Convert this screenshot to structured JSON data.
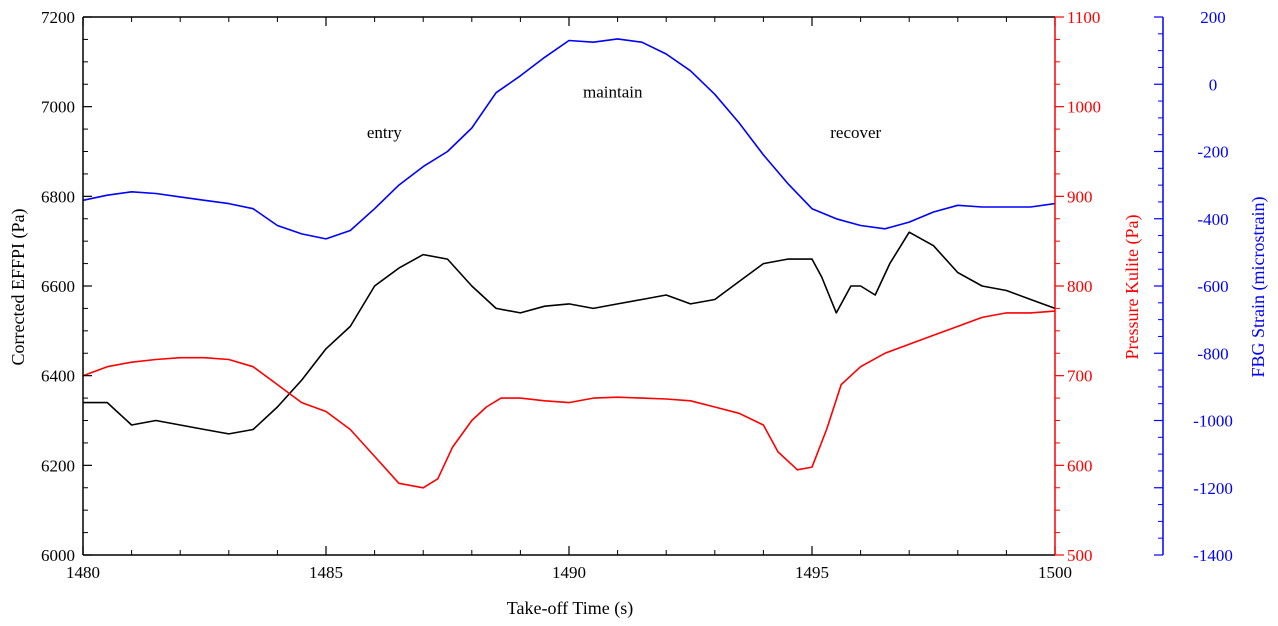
{
  "chart_data": {
    "type": "line",
    "xlabel": "Take-off Time (s)",
    "xlim": [
      1480,
      1500
    ],
    "xticks": [
      1480,
      1485,
      1490,
      1495,
      1500
    ],
    "grid": false,
    "axes": {
      "left": {
        "label": "Corrected EFFPI (Pa)",
        "color": "#000000",
        "ylim": [
          6000,
          7200
        ],
        "ticks": [
          6000,
          6200,
          6400,
          6600,
          6800,
          7000,
          7200
        ]
      },
      "right": {
        "label": "Pressure Kulite (Pa)",
        "color": "#ff0000",
        "ylim": [
          500,
          1100
        ],
        "ticks": [
          500,
          600,
          700,
          800,
          900,
          1000,
          1100
        ]
      },
      "far": {
        "label": "FBG Strain (microstrain)",
        "color": "#0000ff",
        "ylim": [
          -1400,
          200
        ],
        "ticks": [
          -1400,
          -1200,
          -1000,
          -800,
          -600,
          -400,
          -200,
          0,
          200
        ]
      }
    },
    "annotations": [
      {
        "text": "entry",
        "x": 1486.2,
        "y": 6930
      },
      {
        "text": "maintain",
        "x": 1490.9,
        "y": 7020
      },
      {
        "text": "recover",
        "x": 1495.9,
        "y": 6930
      }
    ],
    "series": [
      {
        "axis": "far",
        "color": "#0000ff",
        "x": [
          1480,
          1480.5,
          1481,
          1481.5,
          1482,
          1482.5,
          1483,
          1483.5,
          1484,
          1484.5,
          1485,
          1485.5,
          1486,
          1486.5,
          1487,
          1487.5,
          1488,
          1488.5,
          1489,
          1489.5,
          1490,
          1490.5,
          1491,
          1491.5,
          1492,
          1492.5,
          1493,
          1493.5,
          1494,
          1494.5,
          1495,
          1495.5,
          1496,
          1496.5,
          1497,
          1497.5,
          1498,
          1498.5,
          1499,
          1499.5,
          1500
        ],
        "y": [
          -345,
          -330,
          -320,
          -325,
          -335,
          -345,
          -355,
          -370,
          -420,
          -445,
          -460,
          -435,
          -370,
          -300,
          -245,
          -200,
          -130,
          -25,
          25,
          80,
          130,
          125,
          135,
          125,
          90,
          40,
          -30,
          -115,
          -210,
          -295,
          -370,
          -400,
          -420,
          -430,
          -410,
          -380,
          -360,
          -365,
          -365,
          -365,
          -355
        ]
      },
      {
        "axis": "left",
        "color": "#000000",
        "x": [
          1480,
          1480.5,
          1481,
          1481.5,
          1482,
          1482.5,
          1483,
          1483.5,
          1484,
          1484.5,
          1485,
          1485.5,
          1486,
          1486.5,
          1487,
          1487.5,
          1488,
          1488.5,
          1489,
          1489.5,
          1490,
          1490.5,
          1491,
          1491.5,
          1492,
          1492.5,
          1493,
          1493.5,
          1494,
          1494.5,
          1495,
          1495.2,
          1495.5,
          1495.8,
          1496,
          1496.3,
          1496.6,
          1497,
          1497.5,
          1498,
          1498.5,
          1499,
          1499.5,
          1500
        ],
        "y": [
          6340,
          6340,
          6290,
          6300,
          6290,
          6280,
          6270,
          6280,
          6330,
          6390,
          6460,
          6510,
          6600,
          6640,
          6670,
          6660,
          6600,
          6550,
          6540,
          6555,
          6560,
          6550,
          6560,
          6570,
          6580,
          6560,
          6570,
          6610,
          6650,
          6660,
          6660,
          6620,
          6540,
          6600,
          6600,
          6580,
          6650,
          6720,
          6690,
          6630,
          6600,
          6590,
          6570,
          6550
        ]
      },
      {
        "axis": "right",
        "color": "#ff0000",
        "x": [
          1480,
          1480.5,
          1481,
          1481.5,
          1482,
          1482.5,
          1483,
          1483.5,
          1484,
          1484.5,
          1485,
          1485.5,
          1486,
          1486.5,
          1487,
          1487.3,
          1487.6,
          1488,
          1488.3,
          1488.6,
          1489,
          1489.5,
          1490,
          1490.5,
          1491,
          1491.5,
          1492,
          1492.5,
          1493,
          1493.5,
          1494,
          1494.3,
          1494.7,
          1495,
          1495.3,
          1495.6,
          1496,
          1496.5,
          1497,
          1497.5,
          1498,
          1498.5,
          1499,
          1499.5,
          1500
        ],
        "y": [
          700,
          710,
          715,
          718,
          720,
          720,
          718,
          710,
          690,
          670,
          660,
          640,
          610,
          580,
          575,
          585,
          620,
          650,
          665,
          675,
          675,
          672,
          670,
          675,
          676,
          675,
          674,
          672,
          665,
          658,
          645,
          615,
          595,
          598,
          640,
          690,
          710,
          725,
          735,
          745,
          755,
          765,
          770,
          770,
          772
        ]
      }
    ]
  }
}
